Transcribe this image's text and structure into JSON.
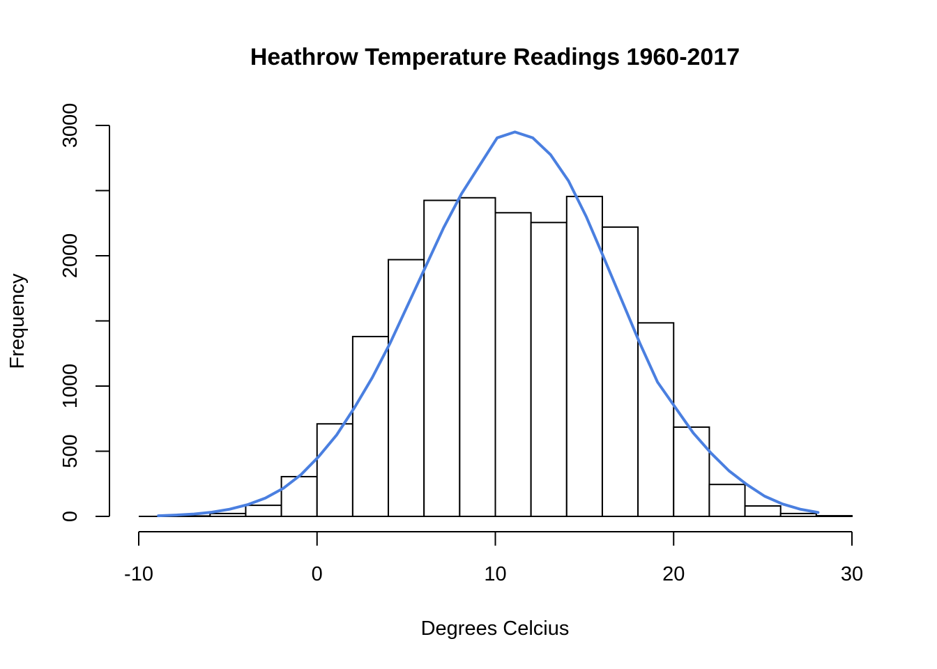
{
  "chart_data": {
    "type": "bar",
    "title": "Heathrow Temperature Readings 1960-2017",
    "xlabel": "Degrees Celcius",
    "ylabel": "Frequency",
    "xlim": [
      -10,
      30
    ],
    "ylim": [
      0,
      3000
    ],
    "x_ticks": [
      -10,
      0,
      10,
      20,
      30
    ],
    "y_ticks": [
      0,
      500,
      1000,
      1500,
      2000,
      2500,
      3000
    ],
    "y_tick_labels": [
      "0",
      "500",
      "1000",
      "",
      "2000",
      "",
      "3000"
    ],
    "bins": [
      {
        "from": -10,
        "to": -8,
        "count": 0
      },
      {
        "from": -8,
        "to": -6,
        "count": 3
      },
      {
        "from": -6,
        "to": -4,
        "count": 22
      },
      {
        "from": -4,
        "to": -2,
        "count": 85
      },
      {
        "from": -2,
        "to": 0,
        "count": 305
      },
      {
        "from": 0,
        "to": 2,
        "count": 710
      },
      {
        "from": 2,
        "to": 4,
        "count": 1380
      },
      {
        "from": 4,
        "to": 6,
        "count": 1970
      },
      {
        "from": 6,
        "to": 8,
        "count": 2425
      },
      {
        "from": 8,
        "to": 10,
        "count": 2445
      },
      {
        "from": 10,
        "to": 12,
        "count": 2330
      },
      {
        "from": 12,
        "to": 14,
        "count": 2255
      },
      {
        "from": 14,
        "to": 16,
        "count": 2455
      },
      {
        "from": 16,
        "to": 18,
        "count": 2220
      },
      {
        "from": 18,
        "to": 20,
        "count": 1485
      },
      {
        "from": 20,
        "to": 22,
        "count": 685
      },
      {
        "from": 22,
        "to": 24,
        "count": 245
      },
      {
        "from": 24,
        "to": 26,
        "count": 80
      },
      {
        "from": 26,
        "to": 28,
        "count": 22
      },
      {
        "from": 28,
        "to": 30,
        "count": 5
      }
    ],
    "normal_curve": {
      "color": "#4a7fe0",
      "points": [
        [
          -8.9,
          5
        ],
        [
          -7.9,
          10
        ],
        [
          -6.9,
          18
        ],
        [
          -5.9,
          32
        ],
        [
          -4.9,
          55
        ],
        [
          -3.9,
          90
        ],
        [
          -2.9,
          140
        ],
        [
          -1.9,
          215
        ],
        [
          -0.9,
          320
        ],
        [
          0.1,
          460
        ],
        [
          1.1,
          625
        ],
        [
          2.1,
          835
        ],
        [
          3.1,
          1065
        ],
        [
          4.1,
          1330
        ],
        [
          5.1,
          1625
        ],
        [
          6.1,
          1920
        ],
        [
          7.1,
          2215
        ],
        [
          8.1,
          2475
        ],
        [
          9.1,
          2690
        ],
        [
          10.1,
          2905
        ],
        [
          11.1,
          2950
        ],
        [
          12.1,
          2905
        ],
        [
          13.1,
          2775
        ],
        [
          14.1,
          2575
        ],
        [
          15.1,
          2300
        ],
        [
          16.1,
          1980
        ],
        [
          17.1,
          1655
        ],
        [
          18.1,
          1330
        ],
        [
          19.1,
          1030
        ],
        [
          20.1,
          835
        ],
        [
          21.1,
          640
        ],
        [
          22.1,
          485
        ],
        [
          23.1,
          350
        ],
        [
          24.1,
          245
        ],
        [
          25.1,
          155
        ],
        [
          26.1,
          95
        ],
        [
          27.1,
          55
        ],
        [
          28.1,
          30
        ]
      ]
    }
  }
}
